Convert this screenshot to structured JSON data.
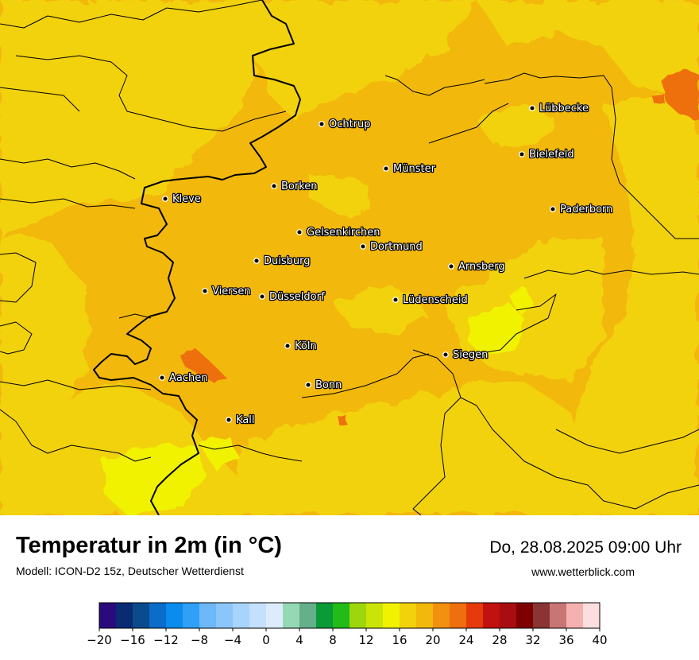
{
  "title": "Temperatur in 2m (in °C)",
  "model": "Modell: ICON-D2 15z, Deutscher Wetterdienst",
  "datetime": "Do, 28.08.2025 09:00 Uhr",
  "website": "www.wetterblick.com",
  "cities": [
    {
      "name": "Lübbecke"
    },
    {
      "name": "Ochtrup"
    },
    {
      "name": "Bielefeld"
    },
    {
      "name": "Münster"
    },
    {
      "name": "Borken"
    },
    {
      "name": "Kleve"
    },
    {
      "name": "Paderborn"
    },
    {
      "name": "Gelsenkirchen"
    },
    {
      "name": "Dortmund"
    },
    {
      "name": "Duisburg"
    },
    {
      "name": "Arnsberg"
    },
    {
      "name": "Viersen"
    },
    {
      "name": "Düsseldorf"
    },
    {
      "name": "Lüdenscheid"
    },
    {
      "name": "Köln"
    },
    {
      "name": "Siegen"
    },
    {
      "name": "Aachen"
    },
    {
      "name": "Bonn"
    },
    {
      "name": "Kall"
    }
  ],
  "legend": {
    "unit": "°C",
    "tick_labels": [
      "−20",
      "−16",
      "−12",
      "−8",
      "−4",
      "0",
      "4",
      "8",
      "12",
      "16",
      "20",
      "24",
      "28",
      "32",
      "36",
      "40"
    ],
    "colors": [
      "#2a0b7e",
      "#0b2a74",
      "#0c4a8e",
      "#0b6cc9",
      "#0a8ced",
      "#2fa0f5",
      "#6cb8f8",
      "#8ac6f9",
      "#a7d4fb",
      "#c4e0fc",
      "#dcecfd",
      "#94d8b4",
      "#64b08a",
      "#0b9a38",
      "#22bb18",
      "#9ed60e",
      "#cbe408",
      "#f0f200",
      "#f2d20a",
      "#f2b80c",
      "#f2900f",
      "#ee6f0d",
      "#e63a0b",
      "#c2120f",
      "#a80d0f",
      "#7e0000",
      "#8a3434",
      "#c87575",
      "#f5b0b0",
      "#fddede"
    ]
  },
  "map_colors": {
    "warm_base": "#f2b80c",
    "cooler": "#f2d20a",
    "coolest": "#f0f200",
    "hot": "#ee6f0d",
    "borders": "#000000"
  }
}
